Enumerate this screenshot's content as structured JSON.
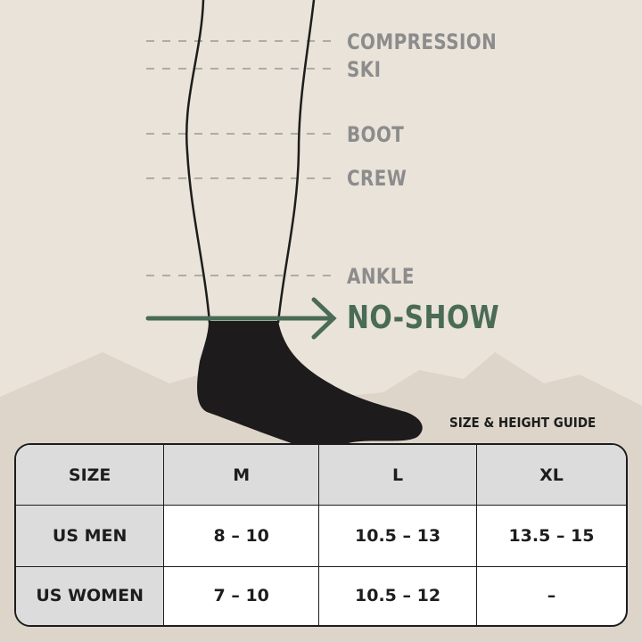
{
  "heights": [
    {
      "label": "COMPRESSION"
    },
    {
      "label": "SKI"
    },
    {
      "label": "BOOT"
    },
    {
      "label": "CREW"
    },
    {
      "label": "ANKLE"
    }
  ],
  "highlight": {
    "label": "NO-SHOW",
    "color": "#4a6b55"
  },
  "guide_title": "SIZE & HEIGHT GUIDE",
  "table": {
    "header": [
      "SIZE",
      "M",
      "L",
      "XL"
    ],
    "rows": [
      [
        "US MEN",
        "8 – 10",
        "10.5 – 13",
        "13.5 – 15"
      ],
      [
        "US WOMEN",
        "7 – 10",
        "10.5 – 12",
        "–"
      ]
    ]
  }
}
